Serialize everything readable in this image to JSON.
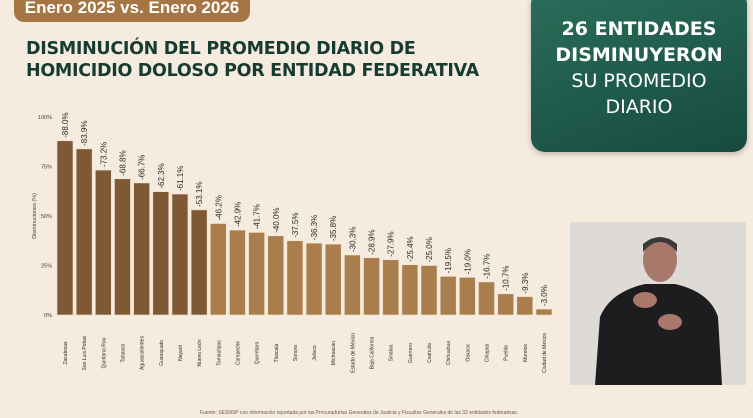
{
  "header": {
    "period": "Enero 2025 vs. Enero 2026",
    "title_line1": "DISMINUCIÓN DEL PROMEDIO DIARIO DE",
    "title_line2": "HOMICIDIO DOLOSO POR ENTIDAD FEDERATIVA"
  },
  "card": {
    "line1": "26 ENTIDADES",
    "line2": "DISMINUYERON",
    "line3": "SU PROMEDIO",
    "line4": "DIARIO",
    "color": "#1e5a4a"
  },
  "source": "Fuente: SESNSP con información reportada por las Procuradurías Generales de Justicia y Fiscalías Generales de las 32 entidades federativas.",
  "chart_data": {
    "type": "bar",
    "ylabel": "Disminuciones (%)",
    "ylim": [
      0,
      100
    ],
    "yticks": [
      "0%",
      "25%",
      "50%",
      "75%",
      "100%"
    ],
    "categories": [
      "Zacatecas",
      "San Luis Potosí",
      "Quintana Roo",
      "Tabasco",
      "Aguascalientes",
      "Guanajuato",
      "Nayarit",
      "Nuevo León",
      "Tamaulipas",
      "Campeche",
      "Querétaro",
      "Tlaxcala",
      "Sonora",
      "Jalisco",
      "Michoacán",
      "Estado de México",
      "Baja California",
      "Sinaloa",
      "Guerrero",
      "Coahuila",
      "Chihuahua",
      "Oaxaca",
      "Chiapas",
      "Puebla",
      "Morelos",
      "Ciudad de México"
    ],
    "values": [
      88.0,
      83.9,
      73.2,
      68.8,
      66.7,
      62.3,
      61.1,
      53.1,
      46.2,
      42.9,
      41.7,
      40.0,
      37.5,
      36.3,
      35.8,
      30.3,
      28.9,
      27.9,
      25.4,
      25.0,
      19.5,
      19.0,
      16.7,
      10.7,
      9.3,
      3.0
    ],
    "labels": [
      "-88.0%",
      "-83.9%",
      "-73.2%",
      "-68.8%",
      "-66.7%",
      "-62.3%",
      "-61.1%",
      "-53.1%",
      "-46.2%",
      "-42.9%",
      "-41.7%",
      "-40.0%",
      "-37.5%",
      "-36.3%",
      "-35.8%",
      "-30.3%",
      "-28.9%",
      "-27.9%",
      "-25.4%",
      "-25.0%",
      "-19.5%",
      "-19.0%",
      "-16.7%",
      "-10.7%",
      "-9.3%",
      "-3.0%"
    ],
    "colors": {
      "above_50": "#7d5a35",
      "below_50": "#a97d4c"
    },
    "grid": false
  }
}
